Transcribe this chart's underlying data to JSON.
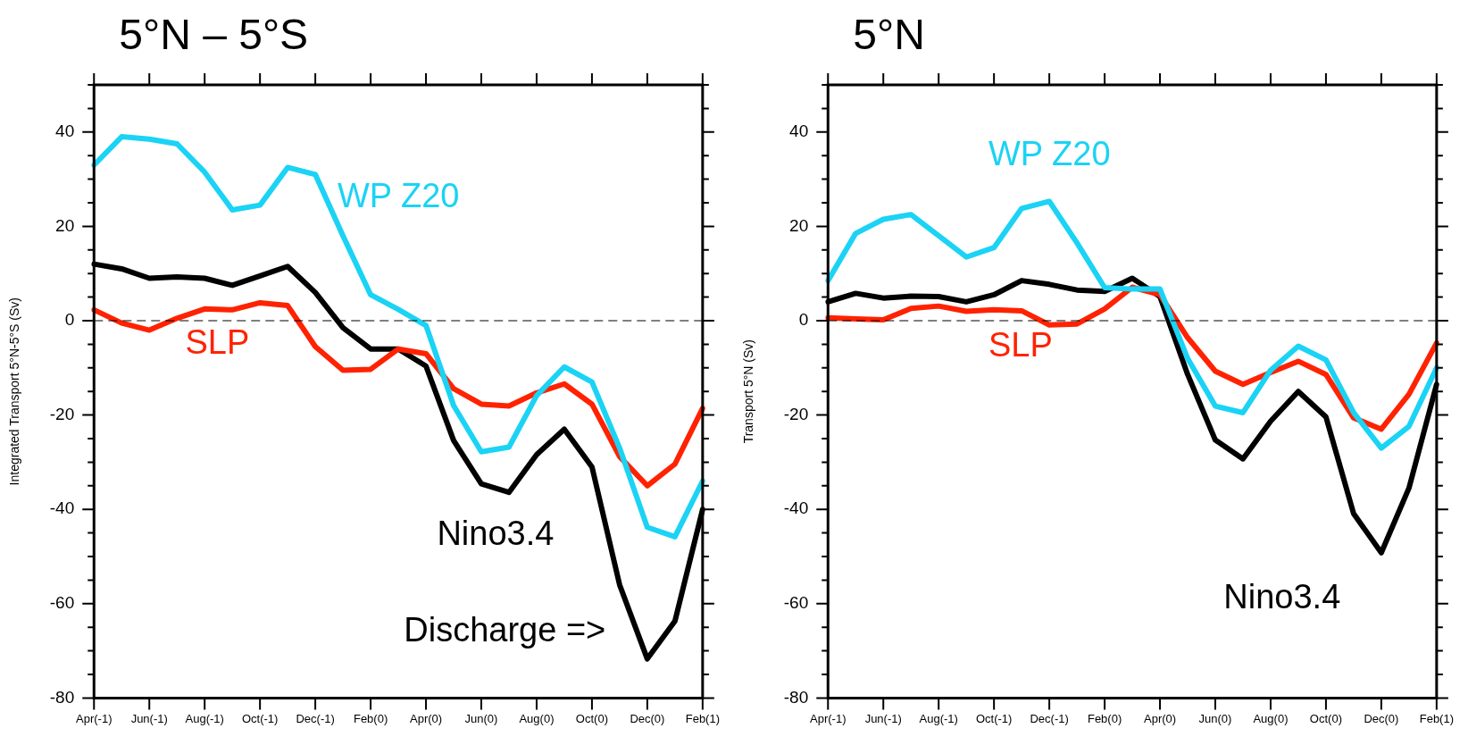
{
  "chart_data": [
    {
      "type": "line",
      "title": "5°N – 5°S",
      "ylabel": "Integrated Transport 5°N-5°S (Sv)",
      "categories": [
        "Apr(-1)",
        null,
        "Jun(-1)",
        null,
        "Aug(-1)",
        null,
        "Oct(-1)",
        null,
        "Dec(-1)",
        null,
        "Feb(0)",
        null,
        "Apr(0)",
        null,
        "Jun(0)",
        null,
        "Aug(0)",
        null,
        "Oct(0)",
        null,
        "Dec(0)",
        null,
        "Feb(1)"
      ],
      "series": [
        {
          "name": "WP Z20",
          "color": "#1ad3f5",
          "values": [
            33,
            39,
            38.5,
            37.5,
            31.5,
            23.5,
            24.5,
            32.5,
            31,
            18,
            5.5,
            2.4,
            -1,
            -18,
            -27.8,
            -26.8,
            -15.9,
            -9.8,
            -13,
            -27,
            -43.8,
            -45.8,
            -34
          ]
        },
        {
          "name": "SLP",
          "color": "#ff2200",
          "values": [
            2.3,
            -0.5,
            -2,
            0.5,
            2.5,
            2.3,
            3.8,
            3.2,
            -5.5,
            -10.5,
            -10.3,
            -6,
            -7,
            -14.4,
            -17.7,
            -18.1,
            -15.3,
            -13.4,
            -17.7,
            -28.8,
            -35,
            -30.4,
            -18.6
          ]
        },
        {
          "name": "Nino3.4",
          "color": "#000000",
          "values": [
            12,
            11,
            9,
            9.3,
            9,
            7.5,
            9.5,
            11.5,
            6,
            -1.5,
            -6,
            -6,
            -9.6,
            -25.4,
            -34.6,
            -36.4,
            -28.4,
            -23,
            -31,
            -56,
            -71.7,
            -63.7,
            -40
          ]
        }
      ],
      "ylim": [
        -80,
        50
      ],
      "yticks": [
        -80,
        {
          "value": -75,
          "label": null
        },
        {
          "value": -70,
          "label": null
        },
        {
          "value": -65,
          "label": null
        },
        -60,
        {
          "value": -55,
          "label": null
        },
        {
          "value": -50,
          "label": null
        },
        {
          "value": -45,
          "label": null
        },
        -40,
        {
          "value": -35,
          "label": null
        },
        {
          "value": -30,
          "label": null
        },
        {
          "value": -25,
          "label": null
        },
        -20,
        {
          "value": -15,
          "label": null
        },
        {
          "value": -10,
          "label": null
        },
        {
          "value": -5,
          "label": null
        },
        0,
        {
          "value": 5,
          "label": null
        },
        {
          "value": 10,
          "label": null
        },
        {
          "value": 15,
          "label": null
        },
        20,
        {
          "value": 25,
          "label": null
        },
        {
          "value": 30,
          "label": null
        },
        {
          "value": 35,
          "label": null
        },
        40,
        {
          "value": 45,
          "label": null
        },
        {
          "value": 50,
          "label": null
        }
      ],
      "ref_lines": [
        {
          "axis": "y",
          "value": 0,
          "color": "#000000",
          "line_style": "dashed"
        }
      ],
      "annotations": [
        "Discharge =>"
      ],
      "grid": false,
      "legend": false,
      "marker": "none",
      "line_style": "solid"
    },
    {
      "type": "line",
      "title": "5°N",
      "ylabel": "Transport 5°N (Sv)",
      "categories": [
        "Apr(-1)",
        null,
        "Jun(-1)",
        null,
        "Aug(-1)",
        null,
        "Oct(-1)",
        null,
        "Dec(-1)",
        null,
        "Feb(0)",
        null,
        "Apr(0)",
        null,
        "Jun(0)",
        null,
        "Aug(0)",
        null,
        "Oct(0)",
        null,
        "Dec(0)",
        null,
        "Feb(1)"
      ],
      "series": [
        {
          "name": "WP Z20",
          "color": "#1ad3f5",
          "values": [
            8.5,
            18.5,
            21.5,
            22.5,
            18,
            13.5,
            15.5,
            23.8,
            25.3,
            16.5,
            7,
            6.7,
            6.7,
            -8,
            -18.1,
            -19.5,
            -10.5,
            -5.4,
            -8.3,
            -19.5,
            -27,
            -22.4,
            -10
          ]
        },
        {
          "name": "SLP",
          "color": "#ff2200",
          "values": [
            0.6,
            0.4,
            0.2,
            2.6,
            3.1,
            2,
            2.3,
            2.1,
            -0.9,
            -0.7,
            2.5,
            7.1,
            5.5,
            -3.6,
            -10.7,
            -13.5,
            -11,
            -8.6,
            -11.4,
            -20.6,
            -23,
            -15.6,
            -4.7
          ]
        },
        {
          "name": "Nino3.4",
          "color": "#000000",
          "values": [
            4,
            5.8,
            4.8,
            5.2,
            5.1,
            4,
            5.5,
            8.5,
            7.7,
            6.5,
            6.2,
            9,
            5.1,
            -11.4,
            -25.3,
            -29.3,
            -21.3,
            -15,
            -20.4,
            -40.9,
            -49.2,
            -35.5,
            -13.5
          ]
        }
      ],
      "ylim": [
        -80,
        50
      ],
      "yticks": [
        -80,
        {
          "value": -75,
          "label": null
        },
        {
          "value": -70,
          "label": null
        },
        {
          "value": -65,
          "label": null
        },
        -60,
        {
          "value": -55,
          "label": null
        },
        {
          "value": -50,
          "label": null
        },
        {
          "value": -45,
          "label": null
        },
        -40,
        {
          "value": -35,
          "label": null
        },
        {
          "value": -30,
          "label": null
        },
        {
          "value": -25,
          "label": null
        },
        -20,
        {
          "value": -15,
          "label": null
        },
        {
          "value": -10,
          "label": null
        },
        {
          "value": -5,
          "label": null
        },
        0,
        {
          "value": 5,
          "label": null
        },
        {
          "value": 10,
          "label": null
        },
        {
          "value": 15,
          "label": null
        },
        20,
        {
          "value": 25,
          "label": null
        },
        {
          "value": 30,
          "label": null
        },
        {
          "value": 35,
          "label": null
        },
        40,
        {
          "value": 45,
          "label": null
        },
        {
          "value": 50,
          "label": null
        }
      ],
      "ref_lines": [
        {
          "axis": "y",
          "value": 0,
          "color": "#000000",
          "line_style": "dashed"
        }
      ],
      "grid": false,
      "legend": false,
      "marker": "none",
      "line_style": "solid"
    }
  ]
}
